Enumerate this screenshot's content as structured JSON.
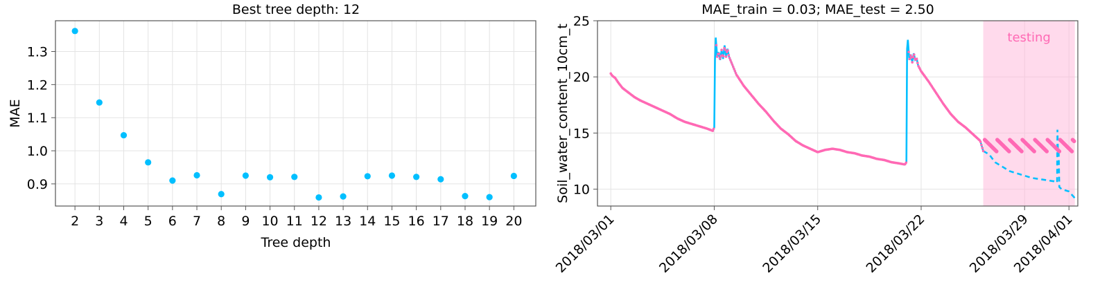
{
  "chart_data": [
    {
      "type": "scatter",
      "title": "Best tree depth: 12",
      "xlabel": "Tree depth",
      "ylabel": "MAE",
      "x": [
        2,
        3,
        4,
        5,
        6,
        7,
        8,
        9,
        10,
        11,
        12,
        13,
        14,
        15,
        16,
        17,
        18,
        19,
        20
      ],
      "y": [
        1.362,
        1.146,
        1.047,
        0.965,
        0.91,
        0.926,
        0.869,
        0.925,
        0.92,
        0.921,
        0.859,
        0.862,
        0.923,
        0.925,
        0.921,
        0.914,
        0.863,
        0.86,
        0.924
      ],
      "xticks": [
        "2",
        "3",
        "4",
        "5",
        "6",
        "7",
        "8",
        "9",
        "10",
        "11",
        "12",
        "13",
        "14",
        "15",
        "16",
        "17",
        "18",
        "19",
        "20"
      ],
      "yticks": [
        "0.9",
        "1.0",
        "1.1",
        "1.2",
        "1.3"
      ],
      "ytick_values": [
        0.9,
        1.0,
        1.1,
        1.2,
        1.3
      ],
      "xlim": [
        1.2,
        20.9
      ],
      "ylim": [
        0.833,
        1.393
      ],
      "grid": true,
      "point_color": "#00bfff"
    },
    {
      "type": "line",
      "title": "MAE_train = 0.03; MAE_test = 2.50",
      "xlabel": "",
      "ylabel": "Soil_water_content_10cm_t",
      "xticks": [
        "2018/03/01",
        "2018/03/08",
        "2018/03/15",
        "2018/03/22",
        "2018/03/29",
        "2018/04/01"
      ],
      "xtick_days": [
        0,
        7,
        14,
        21,
        28,
        31
      ],
      "yticks": [
        "10",
        "15",
        "20",
        "25"
      ],
      "ytick_values": [
        10,
        15,
        20,
        25
      ],
      "xlim": [
        -0.9,
        31.6
      ],
      "ylim": [
        8.5,
        25
      ],
      "grid": true,
      "testing_label": "testing",
      "testing_range": [
        25.2,
        31.4
      ],
      "colors": {
        "observed": "#ff69b4",
        "predicted": "#00bfff",
        "testing_band": "#ffb6d9"
      },
      "series": [
        {
          "style": "solid",
          "color": "#00bfff",
          "x": [
            0,
            0.1,
            0.3,
            0.5,
            0.8,
            1.2,
            1.6,
            2,
            2.5,
            3,
            3.5,
            4,
            4.5,
            5,
            5.5,
            6,
            6.5,
            6.9,
            7,
            7.05,
            7.1,
            7.2,
            7.3,
            7.4,
            7.5,
            7.6,
            7.7,
            7.8,
            7.9,
            8,
            8.5,
            9,
            9.5,
            10,
            10.5,
            11,
            11.5,
            12,
            12.5,
            13,
            13.5,
            14,
            14.5,
            15,
            15.5,
            16,
            16.5,
            17,
            17.5,
            18,
            18.5,
            19,
            19.5,
            19.9,
            20,
            20.05,
            20.1,
            20.2,
            20.3,
            20.4,
            20.5,
            20.6,
            20.7,
            20.8,
            21,
            21.5,
            22,
            22.5,
            23,
            23.5,
            24,
            24.5,
            25,
            25.2
          ],
          "y": [
            20.3,
            20.1,
            19.9,
            19.5,
            19.0,
            18.6,
            18.2,
            17.9,
            17.6,
            17.3,
            17.0,
            16.7,
            16.3,
            16.0,
            15.8,
            15.6,
            15.4,
            15.2,
            15.5,
            21.5,
            23.5,
            21.8,
            22.2,
            21.5,
            22.4,
            21.6,
            22.8,
            21.8,
            22.5,
            21.8,
            20.2,
            19.2,
            18.4,
            17.6,
            16.9,
            16.1,
            15.4,
            14.9,
            14.3,
            13.9,
            13.6,
            13.3,
            13.5,
            13.6,
            13.5,
            13.3,
            13.2,
            13.0,
            12.9,
            12.7,
            12.6,
            12.4,
            12.3,
            12.2,
            12.4,
            22.5,
            23.3,
            21.5,
            22.0,
            21.3,
            22.1,
            21.5,
            21.6,
            21.0,
            20.5,
            19.6,
            18.6,
            17.6,
            16.7,
            16.0,
            15.5,
            14.9,
            14.3,
            13.4
          ]
        },
        {
          "style": "dashed",
          "color": "#00bfff",
          "x": [
            25.2,
            25.6,
            26,
            26.5,
            27,
            27.5,
            28,
            28.5,
            29,
            29.5,
            30,
            30.2,
            30.22,
            30.25,
            30.3,
            30.35,
            30.5,
            31,
            31.4
          ],
          "y": [
            13.4,
            13.1,
            12.4,
            12.0,
            11.6,
            11.4,
            11.2,
            11.0,
            10.9,
            10.8,
            10.7,
            10.6,
            15.3,
            13.6,
            13.5,
            10.2,
            10.0,
            9.8,
            9.2
          ]
        }
      ]
    }
  ]
}
